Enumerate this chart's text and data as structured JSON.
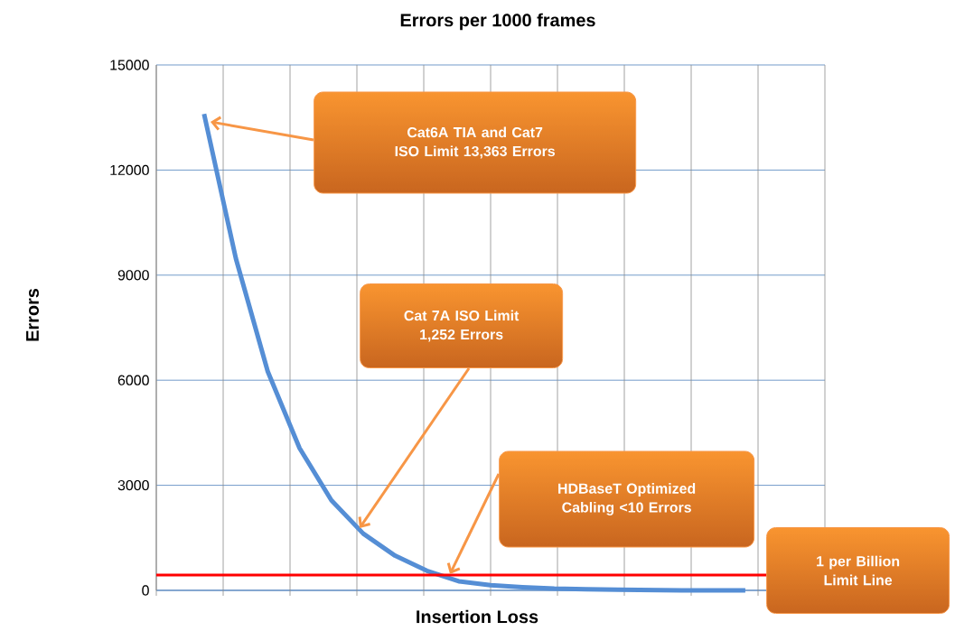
{
  "chart_data": {
    "type": "line",
    "title": "Errors per 1000 frames",
    "xlabel": "Insertion Loss",
    "ylabel": "Errors",
    "categories": [
      null,
      null,
      null,
      null,
      null,
      null,
      null,
      null,
      null,
      null,
      null,
      null,
      null,
      null,
      null,
      null,
      null,
      null,
      null,
      null,
      null
    ],
    "values": [
      null,
      13600,
      9470,
      6250,
      4060,
      2570,
      1620,
      990,
      560,
      260,
      150,
      90,
      50,
      30,
      20,
      10,
      0,
      0,
      0,
      null,
      null
    ],
    "color": "#558ed5",
    "ylim": [
      0,
      15000
    ],
    "yticks": [
      0,
      3000,
      6000,
      9000,
      12000,
      15000
    ],
    "grid": true,
    "ref_lines": [
      {
        "axis": "y",
        "value": 440,
        "label": "1 per Billion Limit Line",
        "color": "#ff0000"
      }
    ],
    "annotations": [
      "Cat6A TIA and Cat7 ISO Limit 13,363 Errors",
      "Cat 7A ISO Limit 1,252 Errors",
      "HDBaseT Optimized Cabling <10 Errors"
    ]
  }
}
